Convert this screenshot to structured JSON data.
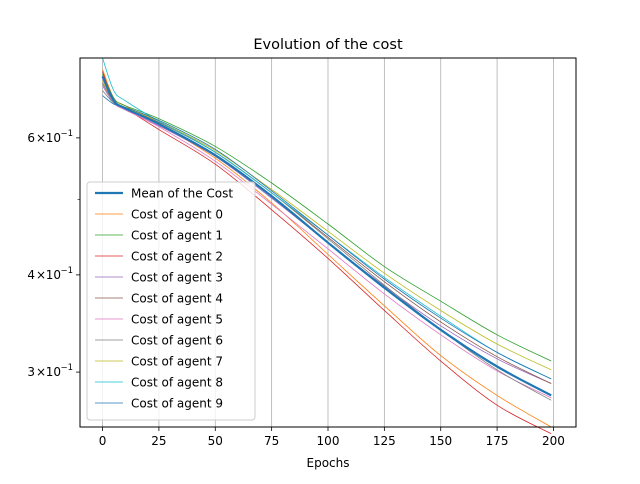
{
  "chart_data": {
    "type": "line",
    "title": "Evolution of the cost",
    "xlabel": "Epochs",
    "ylabel": "",
    "yscale": "log",
    "xlim": [
      -10,
      210
    ],
    "ylim": [
      0.255,
      0.76
    ],
    "xticks": [
      0,
      25,
      50,
      75,
      100,
      125,
      150,
      175,
      200
    ],
    "ymajor_ticks": [
      {
        "value": 0.3,
        "mantissa": "3",
        "sign": "×",
        "base": "10",
        "exp": "−1"
      },
      {
        "value": 0.4,
        "mantissa": "4",
        "sign": "×",
        "base": "10",
        "exp": "−1"
      },
      {
        "value": 0.6,
        "mantissa": "6",
        "sign": "×",
        "base": "10",
        "exp": "−1"
      }
    ],
    "yminor_ticks": [
      0.5
    ],
    "grid": "vertical",
    "legend_position": "lower left",
    "x": [
      0,
      5,
      10,
      25,
      50,
      75,
      100,
      125,
      150,
      175,
      199
    ],
    "series": [
      {
        "name": "Mean of the Cost",
        "color": "#1f77b4",
        "width": 2.2,
        "values": [
          0.72,
          0.67,
          0.655,
          0.625,
          0.57,
          0.505,
          0.44,
          0.385,
          0.34,
          0.305,
          0.28
        ]
      },
      {
        "name": "Cost of agent 0",
        "color": "#ff7f0e",
        "width": 0.8,
        "values": [
          0.735,
          0.675,
          0.66,
          0.625,
          0.565,
          0.495,
          0.425,
          0.365,
          0.315,
          0.28,
          0.255
        ]
      },
      {
        "name": "Cost of agent 1",
        "color": "#2ca02c",
        "width": 0.8,
        "values": [
          0.725,
          0.675,
          0.66,
          0.635,
          0.585,
          0.525,
          0.465,
          0.41,
          0.37,
          0.335,
          0.31
        ]
      },
      {
        "name": "Cost of agent 2",
        "color": "#d62728",
        "width": 0.8,
        "values": [
          0.73,
          0.67,
          0.655,
          0.615,
          0.555,
          0.485,
          0.42,
          0.36,
          0.31,
          0.272,
          0.25
        ]
      },
      {
        "name": "Cost of agent 3",
        "color": "#9467bd",
        "width": 0.8,
        "values": [
          0.7,
          0.665,
          0.652,
          0.622,
          0.568,
          0.502,
          0.44,
          0.387,
          0.344,
          0.312,
          0.29
        ]
      },
      {
        "name": "Cost of agent 4",
        "color": "#8c564b",
        "width": 0.8,
        "values": [
          0.705,
          0.668,
          0.655,
          0.628,
          0.575,
          0.51,
          0.447,
          0.392,
          0.348,
          0.314,
          0.29
        ]
      },
      {
        "name": "Cost of agent 5",
        "color": "#e377c2",
        "width": 0.8,
        "values": [
          0.715,
          0.667,
          0.652,
          0.62,
          0.56,
          0.493,
          0.432,
          0.378,
          0.335,
          0.301,
          0.278
        ]
      },
      {
        "name": "Cost of agent 6",
        "color": "#7f7f7f",
        "width": 0.8,
        "values": [
          0.69,
          0.665,
          0.655,
          0.63,
          0.575,
          0.51,
          0.445,
          0.388,
          0.34,
          0.302,
          0.276
        ]
      },
      {
        "name": "Cost of agent 7",
        "color": "#bcbd22",
        "width": 0.8,
        "values": [
          0.71,
          0.67,
          0.657,
          0.63,
          0.578,
          0.515,
          0.455,
          0.402,
          0.36,
          0.326,
          0.302
        ]
      },
      {
        "name": "Cost of agent 8",
        "color": "#17becf",
        "width": 0.8,
        "values": [
          0.76,
          0.69,
          0.67,
          0.63,
          0.575,
          0.51,
          0.45,
          0.397,
          0.354,
          0.318,
          0.294
        ]
      },
      {
        "name": "Cost of agent 9",
        "color": "#1f77b4",
        "width": 0.8,
        "values": [
          0.68,
          0.663,
          0.657,
          0.632,
          0.58,
          0.513,
          0.45,
          0.395,
          0.352,
          0.318,
          0.294
        ]
      }
    ]
  }
}
